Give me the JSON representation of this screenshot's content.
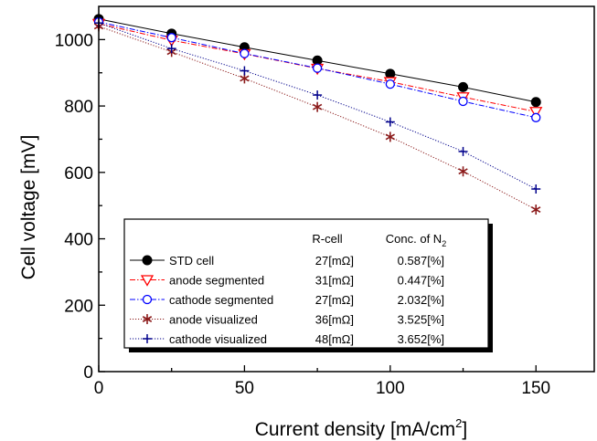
{
  "chart_data": {
    "type": "line",
    "xlabel_main": "Current density [mA/cm",
    "xlabel_sup": "2",
    "xlabel_tail": "]",
    "ylabel": "Cell voltage [mV]",
    "xlim": [
      0,
      170
    ],
    "ylim": [
      0,
      1100
    ],
    "xticks": [
      0,
      50,
      100,
      150
    ],
    "yticks": [
      0,
      200,
      400,
      600,
      800,
      1000
    ],
    "x": [
      0,
      25,
      50,
      75,
      100,
      125,
      150
    ],
    "legend_placement": "bottom-left",
    "legend_headers": {
      "rcell": "R-cell",
      "conc_main": "Conc. of N",
      "conc_sub": "2"
    },
    "series": [
      {
        "name": "STD cell",
        "rcell": "27[mΩ]",
        "conc": "0.587[%]",
        "marker": "filled-circle",
        "line": "solid",
        "color": "#000000",
        "values": [
          1062,
          1018,
          977,
          937,
          897,
          857,
          812
        ]
      },
      {
        "name": "anode segmented",
        "rcell": "31[mΩ]",
        "conc": "0.447[%]",
        "marker": "triangle-down",
        "line": "dash-dot",
        "color": "#ff0000",
        "values": [
          1048,
          998,
          957,
          913,
          873,
          827,
          783
        ]
      },
      {
        "name": "cathode segmented",
        "rcell": "27[mΩ]",
        "conc": "2.032[%]",
        "marker": "open-circle",
        "line": "dash-dot",
        "color": "#0000ff",
        "values": [
          1053,
          1006,
          958,
          914,
          866,
          814,
          765
        ]
      },
      {
        "name": "anode visualized",
        "rcell": "36[mΩ]",
        "conc": "3.525[%]",
        "marker": "asterisk",
        "line": "dotted",
        "color": "#8b1a1a",
        "values": [
          1040,
          963,
          883,
          797,
          707,
          603,
          488
        ]
      },
      {
        "name": "cathode visualized",
        "rcell": "48[mΩ]",
        "conc": "3.652[%]",
        "marker": "plus",
        "line": "dotted",
        "color": "#00008b",
        "values": [
          1050,
          973,
          906,
          833,
          752,
          663,
          550
        ]
      }
    ]
  }
}
